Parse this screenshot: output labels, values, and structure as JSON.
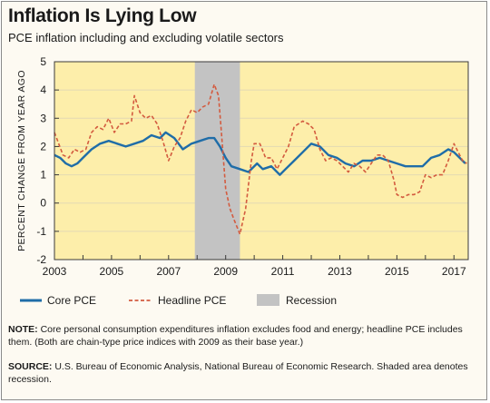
{
  "title": "Inflation Is Lying Low",
  "subtitle": "PCE inflation including and excluding volatile sectors",
  "notes": {
    "note_label": "NOTE:",
    "note_text": "Core personal consumption expenditures inflation excludes food and energy; headline PCE includes them. (Both are chain-type price indices with 2009 as their base year.)",
    "source_label": "SOURCE:",
    "source_text": "U.S. Bureau of Economic Analysis, National Bureau of Economic Research. Shaded area denotes recession."
  },
  "colors": {
    "plot_background": "#fdeeaa",
    "core": "#1f6da8",
    "headline": "#d35b3f",
    "recession": "#c3c3c3",
    "grid": "#e3d9b3"
  },
  "chart_data": {
    "type": "line",
    "ylabel": "PERCENT CHANGE FROM YEAR AGO",
    "xlim": [
      2003,
      2017.5
    ],
    "ylim": [
      -2,
      5
    ],
    "x_ticks": [
      2003,
      2005,
      2007,
      2009,
      2011,
      2013,
      2015,
      2017
    ],
    "y_ticks": [
      -2,
      -1,
      0,
      1,
      2,
      3,
      4,
      5
    ],
    "grid": true,
    "recession": {
      "name": "Recession",
      "start": 2007.92,
      "end": 2009.5
    },
    "series": [
      {
        "name": "Core PCE",
        "style": "solid",
        "points": [
          [
            2003.0,
            1.7
          ],
          [
            2003.2,
            1.6
          ],
          [
            2003.4,
            1.4
          ],
          [
            2003.6,
            1.3
          ],
          [
            2003.8,
            1.4
          ],
          [
            2004.0,
            1.6
          ],
          [
            2004.3,
            1.9
          ],
          [
            2004.6,
            2.1
          ],
          [
            2004.9,
            2.2
          ],
          [
            2005.2,
            2.1
          ],
          [
            2005.5,
            2.0
          ],
          [
            2005.8,
            2.1
          ],
          [
            2006.1,
            2.2
          ],
          [
            2006.4,
            2.4
          ],
          [
            2006.7,
            2.3
          ],
          [
            2006.9,
            2.5
          ],
          [
            2007.2,
            2.3
          ],
          [
            2007.5,
            1.9
          ],
          [
            2007.8,
            2.1
          ],
          [
            2008.1,
            2.2
          ],
          [
            2008.4,
            2.3
          ],
          [
            2008.6,
            2.3
          ],
          [
            2008.8,
            2.0
          ],
          [
            2009.0,
            1.6
          ],
          [
            2009.2,
            1.3
          ],
          [
            2009.5,
            1.2
          ],
          [
            2009.8,
            1.1
          ],
          [
            2010.1,
            1.4
          ],
          [
            2010.3,
            1.2
          ],
          [
            2010.6,
            1.3
          ],
          [
            2010.9,
            1.0
          ],
          [
            2011.1,
            1.2
          ],
          [
            2011.4,
            1.5
          ],
          [
            2011.7,
            1.8
          ],
          [
            2012.0,
            2.1
          ],
          [
            2012.3,
            2.0
          ],
          [
            2012.6,
            1.7
          ],
          [
            2012.9,
            1.6
          ],
          [
            2013.2,
            1.4
          ],
          [
            2013.5,
            1.3
          ],
          [
            2013.8,
            1.5
          ],
          [
            2014.1,
            1.5
          ],
          [
            2014.4,
            1.6
          ],
          [
            2014.7,
            1.5
          ],
          [
            2015.0,
            1.4
          ],
          [
            2015.3,
            1.3
          ],
          [
            2015.6,
            1.3
          ],
          [
            2015.9,
            1.3
          ],
          [
            2016.2,
            1.6
          ],
          [
            2016.5,
            1.7
          ],
          [
            2016.8,
            1.9
          ],
          [
            2017.0,
            1.8
          ],
          [
            2017.2,
            1.6
          ],
          [
            2017.4,
            1.4
          ]
        ]
      },
      {
        "name": "Headline PCE",
        "style": "dashed",
        "points": [
          [
            2003.0,
            2.5
          ],
          [
            2003.15,
            2.1
          ],
          [
            2003.3,
            1.7
          ],
          [
            2003.5,
            1.6
          ],
          [
            2003.7,
            1.9
          ],
          [
            2003.9,
            1.8
          ],
          [
            2004.1,
            1.9
          ],
          [
            2004.3,
            2.5
          ],
          [
            2004.5,
            2.7
          ],
          [
            2004.7,
            2.6
          ],
          [
            2004.9,
            3.0
          ],
          [
            2005.1,
            2.5
          ],
          [
            2005.3,
            2.8
          ],
          [
            2005.5,
            2.8
          ],
          [
            2005.7,
            2.9
          ],
          [
            2005.8,
            3.8
          ],
          [
            2006.0,
            3.2
          ],
          [
            2006.2,
            3.0
          ],
          [
            2006.4,
            3.1
          ],
          [
            2006.6,
            2.8
          ],
          [
            2006.8,
            2.2
          ],
          [
            2007.0,
            1.5
          ],
          [
            2007.2,
            2.0
          ],
          [
            2007.4,
            2.3
          ],
          [
            2007.6,
            2.9
          ],
          [
            2007.8,
            3.3
          ],
          [
            2008.0,
            3.2
          ],
          [
            2008.2,
            3.4
          ],
          [
            2008.4,
            3.5
          ],
          [
            2008.6,
            4.2
          ],
          [
            2008.75,
            3.8
          ],
          [
            2008.85,
            2.5
          ],
          [
            2009.0,
            0.5
          ],
          [
            2009.15,
            -0.2
          ],
          [
            2009.3,
            -0.6
          ],
          [
            2009.5,
            -1.1
          ],
          [
            2009.7,
            -0.2
          ],
          [
            2009.9,
            1.5
          ],
          [
            2010.0,
            2.1
          ],
          [
            2010.2,
            2.1
          ],
          [
            2010.4,
            1.6
          ],
          [
            2010.6,
            1.6
          ],
          [
            2010.8,
            1.2
          ],
          [
            2011.0,
            1.6
          ],
          [
            2011.2,
            2.0
          ],
          [
            2011.4,
            2.7
          ],
          [
            2011.7,
            2.9
          ],
          [
            2011.9,
            2.8
          ],
          [
            2012.1,
            2.6
          ],
          [
            2012.3,
            1.9
          ],
          [
            2012.5,
            1.5
          ],
          [
            2012.7,
            1.6
          ],
          [
            2012.9,
            1.5
          ],
          [
            2013.1,
            1.3
          ],
          [
            2013.3,
            1.1
          ],
          [
            2013.5,
            1.4
          ],
          [
            2013.7,
            1.3
          ],
          [
            2013.9,
            1.1
          ],
          [
            2014.1,
            1.4
          ],
          [
            2014.3,
            1.7
          ],
          [
            2014.5,
            1.7
          ],
          [
            2014.7,
            1.5
          ],
          [
            2014.9,
            0.8
          ],
          [
            2015.0,
            0.3
          ],
          [
            2015.2,
            0.2
          ],
          [
            2015.4,
            0.3
          ],
          [
            2015.6,
            0.3
          ],
          [
            2015.8,
            0.4
          ],
          [
            2016.0,
            1.0
          ],
          [
            2016.2,
            0.9
          ],
          [
            2016.4,
            1.0
          ],
          [
            2016.6,
            1.0
          ],
          [
            2016.8,
            1.5
          ],
          [
            2017.0,
            2.1
          ],
          [
            2017.15,
            1.8
          ],
          [
            2017.3,
            1.5
          ],
          [
            2017.45,
            1.4
          ]
        ]
      }
    ]
  }
}
